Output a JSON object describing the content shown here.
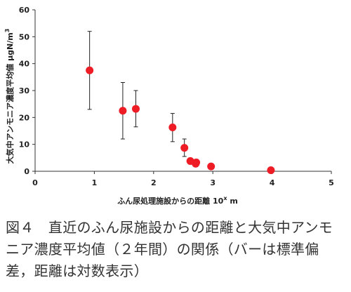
{
  "chart_data": {
    "type": "scatter",
    "xlabel": "ふん尿処理施設からの距離 10",
    "xlabel_sup": "x",
    "xlabel_unit": " m",
    "ylabel": "大気中アンモニア濃度平均値 μgN/m",
    "ylabel_sup": "3",
    "xlim": [
      0,
      5
    ],
    "ylim": [
      0,
      60
    ],
    "xticks": [
      "0",
      "1",
      "2",
      "3",
      "4",
      "5"
    ],
    "yticks": [
      "0",
      "10",
      "20",
      "30",
      "40",
      "50",
      "60"
    ],
    "grid": false,
    "marker_color": "#ee1c25",
    "points": [
      {
        "x": 0.92,
        "y": 37.5,
        "err_low": 23,
        "err_high": 52
      },
      {
        "x": 1.48,
        "y": 22.5,
        "err_low": 12,
        "err_high": 33
      },
      {
        "x": 1.7,
        "y": 23.2,
        "err_low": 16.5,
        "err_high": 30
      },
      {
        "x": 2.32,
        "y": 16.3,
        "err_low": 11,
        "err_high": 21.5
      },
      {
        "x": 2.52,
        "y": 8.7,
        "err_low": 5.5,
        "err_high": 12
      },
      {
        "x": 2.62,
        "y": 3.8,
        "err_low": null,
        "err_high": null
      },
      {
        "x": 2.71,
        "y": 2.8,
        "err_low": null,
        "err_high": null
      },
      {
        "x": 2.72,
        "y": 3.3,
        "err_low": null,
        "err_high": null
      },
      {
        "x": 2.97,
        "y": 1.8,
        "err_low": null,
        "err_high": null
      },
      {
        "x": 3.98,
        "y": 0.4,
        "err_low": null,
        "err_high": null
      }
    ]
  },
  "caption": "図４　直近のふん尿施設からの距離と大気中アンモニア濃度平均値（２年間）の関係（バーは標準偏差，距離は対数表示）"
}
